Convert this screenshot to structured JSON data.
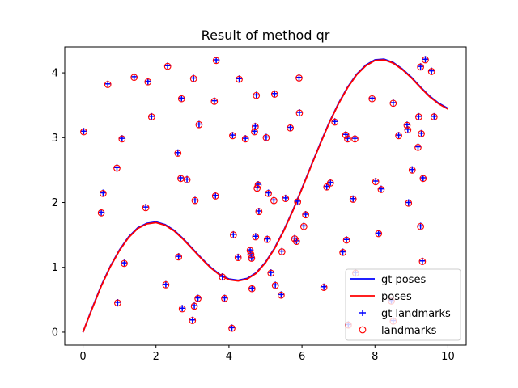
{
  "chart_data": {
    "type": "scatter",
    "title": "Result of method qr",
    "xlabel": "",
    "ylabel": "",
    "xlim": [
      -0.5,
      10.5
    ],
    "ylim": [
      -0.2,
      4.4
    ],
    "xticks": [
      0,
      2,
      4,
      6,
      8,
      10
    ],
    "yticks": [
      0,
      1,
      2,
      3,
      4
    ],
    "grid": false,
    "legend_position": "lower right",
    "colors": {
      "gt": "#0000ff",
      "est": "#ff0000"
    },
    "series": [
      {
        "name": "gt poses",
        "kind": "line",
        "x": [
          0,
          0.25,
          0.5,
          0.75,
          1,
          1.25,
          1.5,
          1.75,
          2,
          2.25,
          2.5,
          2.75,
          3,
          3.25,
          3.5,
          3.75,
          4,
          4.25,
          4.5,
          4.75,
          5,
          5.25,
          5.5,
          5.75,
          6,
          6.25,
          6.5,
          6.75,
          7,
          7.25,
          7.5,
          7.75,
          8,
          8.25,
          8.5,
          8.75,
          9,
          9.25,
          9.5,
          9.75,
          10
        ],
        "y": [
          0,
          0.37,
          0.72,
          1.02,
          1.27,
          1.47,
          1.61,
          1.68,
          1.7,
          1.66,
          1.57,
          1.44,
          1.29,
          1.14,
          1.0,
          0.89,
          0.82,
          0.8,
          0.83,
          0.92,
          1.08,
          1.3,
          1.57,
          1.88,
          2.22,
          2.57,
          2.91,
          3.24,
          3.53,
          3.78,
          3.98,
          4.12,
          4.2,
          4.21,
          4.16,
          4.06,
          3.93,
          3.78,
          3.64,
          3.53,
          3.45
        ]
      },
      {
        "name": "poses",
        "kind": "line",
        "x": [
          0,
          0.25,
          0.5,
          0.75,
          1,
          1.25,
          1.5,
          1.75,
          2,
          2.25,
          2.5,
          2.75,
          3,
          3.25,
          3.5,
          3.75,
          4,
          4.25,
          4.5,
          4.75,
          5,
          5.25,
          5.5,
          5.75,
          6,
          6.25,
          6.5,
          6.75,
          7,
          7.25,
          7.5,
          7.75,
          8,
          8.25,
          8.5,
          8.75,
          9,
          9.25,
          9.5,
          9.75,
          10
        ],
        "y": [
          0,
          0.36,
          0.71,
          1.01,
          1.26,
          1.46,
          1.6,
          1.67,
          1.69,
          1.65,
          1.56,
          1.43,
          1.28,
          1.13,
          0.99,
          0.88,
          0.81,
          0.79,
          0.82,
          0.91,
          1.07,
          1.29,
          1.56,
          1.87,
          2.21,
          2.56,
          2.9,
          3.23,
          3.52,
          3.77,
          3.97,
          4.11,
          4.19,
          4.2,
          4.15,
          4.05,
          3.92,
          3.77,
          3.63,
          3.52,
          3.44
        ]
      },
      {
        "name": "gt landmarks",
        "kind": "points",
        "marker": "+",
        "points": [
          [
            0.02,
            3.1
          ],
          [
            0.5,
            1.85
          ],
          [
            0.55,
            2.15
          ],
          [
            0.68,
            3.83
          ],
          [
            0.93,
            2.54
          ],
          [
            0.95,
            0.46
          ],
          [
            1.07,
            2.99
          ],
          [
            1.13,
            1.07
          ],
          [
            1.4,
            3.94
          ],
          [
            1.72,
            1.93
          ],
          [
            1.78,
            3.87
          ],
          [
            1.88,
            3.33
          ],
          [
            2.27,
            0.74
          ],
          [
            2.32,
            4.11
          ],
          [
            2.6,
            2.77
          ],
          [
            2.62,
            1.17
          ],
          [
            2.68,
            2.38
          ],
          [
            2.7,
            3.61
          ],
          [
            2.72,
            0.37
          ],
          [
            2.85,
            2.36
          ],
          [
            3.0,
            0.19
          ],
          [
            3.03,
            3.92
          ],
          [
            3.05,
            0.41
          ],
          [
            3.07,
            2.04
          ],
          [
            3.15,
            0.53
          ],
          [
            3.18,
            3.21
          ],
          [
            3.6,
            3.57
          ],
          [
            3.63,
            2.11
          ],
          [
            3.65,
            4.2
          ],
          [
            3.82,
            0.86
          ],
          [
            3.88,
            0.53
          ],
          [
            4.08,
            0.07
          ],
          [
            4.1,
            3.04
          ],
          [
            4.12,
            1.51
          ],
          [
            4.25,
            1.16
          ],
          [
            4.28,
            3.91
          ],
          [
            4.45,
            2.99
          ],
          [
            4.58,
            1.27
          ],
          [
            4.6,
            1.21
          ],
          [
            4.62,
            1.15
          ],
          [
            4.63,
            0.68
          ],
          [
            4.7,
            3.1
          ],
          [
            4.72,
            3.18
          ],
          [
            4.73,
            1.48
          ],
          [
            4.75,
            3.66
          ],
          [
            4.77,
            2.23
          ],
          [
            4.8,
            2.28
          ],
          [
            4.82,
            1.87
          ],
          [
            5.02,
            3.01
          ],
          [
            5.05,
            1.44
          ],
          [
            5.08,
            2.15
          ],
          [
            5.15,
            0.92
          ],
          [
            5.23,
            2.04
          ],
          [
            5.25,
            3.68
          ],
          [
            5.27,
            0.73
          ],
          [
            5.43,
            0.58
          ],
          [
            5.45,
            1.25
          ],
          [
            5.55,
            2.07
          ],
          [
            5.68,
            3.16
          ],
          [
            5.8,
            1.45
          ],
          [
            5.85,
            1.41
          ],
          [
            5.88,
            2.02
          ],
          [
            5.92,
            3.93
          ],
          [
            5.93,
            3.39
          ],
          [
            6.05,
            1.64
          ],
          [
            6.1,
            1.82
          ],
          [
            6.6,
            0.7
          ],
          [
            6.68,
            2.25
          ],
          [
            6.78,
            2.31
          ],
          [
            6.9,
            3.25
          ],
          [
            7.12,
            1.24
          ],
          [
            7.2,
            3.05
          ],
          [
            7.22,
            1.43
          ],
          [
            7.25,
            2.99
          ],
          [
            7.27,
            0.12
          ],
          [
            7.45,
            2.99
          ],
          [
            7.47,
            0.92
          ],
          [
            7.4,
            2.06
          ],
          [
            7.92,
            3.61
          ],
          [
            8.02,
            2.33
          ],
          [
            8.1,
            1.53
          ],
          [
            8.17,
            2.21
          ],
          [
            8.45,
            0.49
          ],
          [
            8.5,
            3.54
          ],
          [
            8.5,
            0.18
          ],
          [
            8.65,
            3.04
          ],
          [
            8.88,
            3.2
          ],
          [
            8.9,
            3.13
          ],
          [
            8.92,
            2.0
          ],
          [
            9.02,
            2.51
          ],
          [
            9.18,
            2.86
          ],
          [
            9.2,
            3.33
          ],
          [
            9.25,
            1.64
          ],
          [
            9.25,
            4.1
          ],
          [
            9.27,
            3.07
          ],
          [
            9.3,
            1.1
          ],
          [
            9.32,
            2.38
          ],
          [
            9.38,
            4.21
          ],
          [
            9.55,
            4.03
          ],
          [
            9.62,
            3.33
          ]
        ]
      },
      {
        "name": "landmarks",
        "kind": "points",
        "marker": "o",
        "points": [
          [
            0.02,
            3.09
          ],
          [
            0.5,
            1.84
          ],
          [
            0.55,
            2.14
          ],
          [
            0.68,
            3.82
          ],
          [
            0.93,
            2.53
          ],
          [
            0.95,
            0.45
          ],
          [
            1.07,
            2.98
          ],
          [
            1.13,
            1.06
          ],
          [
            1.4,
            3.93
          ],
          [
            1.72,
            1.92
          ],
          [
            1.78,
            3.86
          ],
          [
            1.88,
            3.32
          ],
          [
            2.27,
            0.73
          ],
          [
            2.32,
            4.1
          ],
          [
            2.6,
            2.76
          ],
          [
            2.62,
            1.16
          ],
          [
            2.68,
            2.37
          ],
          [
            2.7,
            3.6
          ],
          [
            2.72,
            0.36
          ],
          [
            2.85,
            2.35
          ],
          [
            3.0,
            0.18
          ],
          [
            3.03,
            3.91
          ],
          [
            3.05,
            0.4
          ],
          [
            3.07,
            2.03
          ],
          [
            3.15,
            0.52
          ],
          [
            3.18,
            3.2
          ],
          [
            3.6,
            3.56
          ],
          [
            3.63,
            2.1
          ],
          [
            3.65,
            4.19
          ],
          [
            3.82,
            0.85
          ],
          [
            3.88,
            0.52
          ],
          [
            4.08,
            0.06
          ],
          [
            4.1,
            3.03
          ],
          [
            4.12,
            1.5
          ],
          [
            4.25,
            1.15
          ],
          [
            4.28,
            3.9
          ],
          [
            4.45,
            2.98
          ],
          [
            4.58,
            1.26
          ],
          [
            4.6,
            1.2
          ],
          [
            4.62,
            1.14
          ],
          [
            4.63,
            0.67
          ],
          [
            4.7,
            3.09
          ],
          [
            4.72,
            3.17
          ],
          [
            4.73,
            1.47
          ],
          [
            4.75,
            3.65
          ],
          [
            4.77,
            2.22
          ],
          [
            4.8,
            2.27
          ],
          [
            4.82,
            1.86
          ],
          [
            5.02,
            3.0
          ],
          [
            5.05,
            1.43
          ],
          [
            5.08,
            2.14
          ],
          [
            5.15,
            0.91
          ],
          [
            5.23,
            2.03
          ],
          [
            5.25,
            3.67
          ],
          [
            5.27,
            0.72
          ],
          [
            5.43,
            0.57
          ],
          [
            5.45,
            1.24
          ],
          [
            5.55,
            2.06
          ],
          [
            5.68,
            3.15
          ],
          [
            5.8,
            1.44
          ],
          [
            5.85,
            1.4
          ],
          [
            5.88,
            2.01
          ],
          [
            5.92,
            3.92
          ],
          [
            5.93,
            3.38
          ],
          [
            6.05,
            1.63
          ],
          [
            6.1,
            1.81
          ],
          [
            6.6,
            0.69
          ],
          [
            6.68,
            2.24
          ],
          [
            6.78,
            2.3
          ],
          [
            6.9,
            3.24
          ],
          [
            7.12,
            1.23
          ],
          [
            7.2,
            3.04
          ],
          [
            7.22,
            1.42
          ],
          [
            7.25,
            2.98
          ],
          [
            7.27,
            0.11
          ],
          [
            7.45,
            2.98
          ],
          [
            7.47,
            0.91
          ],
          [
            7.4,
            2.05
          ],
          [
            7.92,
            3.6
          ],
          [
            8.02,
            2.32
          ],
          [
            8.1,
            1.52
          ],
          [
            8.17,
            2.2
          ],
          [
            8.45,
            0.48
          ],
          [
            8.5,
            3.53
          ],
          [
            8.5,
            0.17
          ],
          [
            8.65,
            3.03
          ],
          [
            8.88,
            3.19
          ],
          [
            8.9,
            3.12
          ],
          [
            8.92,
            1.99
          ],
          [
            9.02,
            2.5
          ],
          [
            9.18,
            2.85
          ],
          [
            9.2,
            3.32
          ],
          [
            9.25,
            1.63
          ],
          [
            9.25,
            4.09
          ],
          [
            9.27,
            3.06
          ],
          [
            9.3,
            1.09
          ],
          [
            9.32,
            2.37
          ],
          [
            9.38,
            4.2
          ],
          [
            9.55,
            4.02
          ],
          [
            9.62,
            3.32
          ]
        ]
      }
    ]
  }
}
